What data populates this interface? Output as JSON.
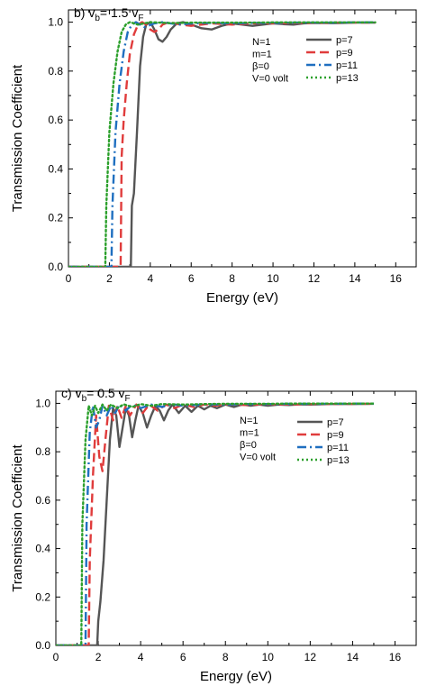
{
  "chart_data": [
    {
      "type": "line",
      "panel_label": "b) v",
      "panel_sub1": "b",
      "panel_mid": "= 1.5 v",
      "panel_sub2": "F",
      "xlabel": "Energy (eV)",
      "ylabel": "Transmission Coefficient",
      "xlim": [
        0,
        17
      ],
      "ylim": [
        0,
        1.05
      ],
      "xticks": [
        "0",
        "2",
        "4",
        "6",
        "8",
        "10",
        "12",
        "14",
        "16"
      ],
      "yticks": [
        "0.0",
        "0.2",
        "0.4",
        "0.6",
        "0.8",
        "1.0"
      ],
      "params": [
        "N=1",
        "m=1",
        "β=0",
        "V=0 volt"
      ],
      "legend_position": "top-right",
      "series": [
        {
          "name": "p=7",
          "color": "#555555",
          "dash": "solid",
          "points": [
            [
              0,
              0
            ],
            [
              3.05,
              0
            ],
            [
              3.1,
              0.25
            ],
            [
              3.2,
              0.3
            ],
            [
              3.35,
              0.55
            ],
            [
              3.5,
              0.82
            ],
            [
              3.65,
              0.94
            ],
            [
              3.8,
              0.99
            ],
            [
              4.0,
              1.0
            ],
            [
              4.2,
              0.97
            ],
            [
              4.4,
              0.93
            ],
            [
              4.6,
              0.92
            ],
            [
              4.8,
              0.94
            ],
            [
              5.0,
              0.97
            ],
            [
              5.3,
              0.995
            ],
            [
              5.6,
              1.0
            ],
            [
              6.0,
              0.99
            ],
            [
              6.5,
              0.975
            ],
            [
              7.0,
              0.97
            ],
            [
              7.5,
              0.985
            ],
            [
              8.0,
              0.995
            ],
            [
              8.5,
              0.99
            ],
            [
              9.0,
              0.985
            ],
            [
              9.5,
              0.99
            ],
            [
              10.0,
              0.995
            ],
            [
              10.5,
              0.992
            ],
            [
              11.0,
              0.99
            ],
            [
              11.5,
              0.995
            ],
            [
              12.0,
              0.997
            ],
            [
              13.0,
              0.996
            ],
            [
              14.0,
              0.998
            ],
            [
              15.0,
              0.998
            ]
          ]
        },
        {
          "name": "p=9",
          "color": "#e03c3c",
          "dash": "dashed",
          "points": [
            [
              0,
              0
            ],
            [
              2.55,
              0
            ],
            [
              2.6,
              0.45
            ],
            [
              2.7,
              0.6
            ],
            [
              2.85,
              0.75
            ],
            [
              3.0,
              0.87
            ],
            [
              3.2,
              0.95
            ],
            [
              3.4,
              0.99
            ],
            [
              3.6,
              1.0
            ],
            [
              3.8,
              0.99
            ],
            [
              4.0,
              0.97
            ],
            [
              4.2,
              0.96
            ],
            [
              4.4,
              0.97
            ],
            [
              4.6,
              0.99
            ],
            [
              4.9,
              1.0
            ],
            [
              5.5,
              0.99
            ],
            [
              6.0,
              0.985
            ],
            [
              6.5,
              0.99
            ],
            [
              7.0,
              0.995
            ],
            [
              8.0,
              0.99
            ],
            [
              9.0,
              0.995
            ],
            [
              10.0,
              0.995
            ],
            [
              11.0,
              0.996
            ],
            [
              12.0,
              0.997
            ],
            [
              13.0,
              0.998
            ],
            [
              14.0,
              0.998
            ],
            [
              15.0,
              0.998
            ]
          ]
        },
        {
          "name": "p=11",
          "color": "#1f6fc0",
          "dash": "dashdot",
          "points": [
            [
              0,
              0
            ],
            [
              2.1,
              0
            ],
            [
              2.15,
              0.25
            ],
            [
              2.3,
              0.55
            ],
            [
              2.5,
              0.75
            ],
            [
              2.7,
              0.88
            ],
            [
              2.9,
              0.96
            ],
            [
              3.1,
              0.99
            ],
            [
              3.3,
              1.0
            ],
            [
              3.5,
              0.99
            ],
            [
              3.7,
              0.98
            ],
            [
              3.9,
              0.985
            ],
            [
              4.2,
              0.995
            ],
            [
              4.6,
              1.0
            ],
            [
              5.0,
              0.995
            ],
            [
              5.5,
              0.99
            ],
            [
              6.0,
              0.995
            ],
            [
              7.0,
              0.997
            ],
            [
              8.0,
              0.995
            ],
            [
              9.0,
              0.997
            ],
            [
              10.0,
              0.997
            ],
            [
              11.0,
              0.998
            ],
            [
              12.0,
              0.998
            ],
            [
              13.0,
              0.998
            ],
            [
              14.0,
              0.999
            ],
            [
              15.0,
              0.999
            ]
          ]
        },
        {
          "name": "p=13",
          "color": "#2ca02c",
          "dash": "dotted",
          "points": [
            [
              0,
              0
            ],
            [
              1.8,
              0
            ],
            [
              1.85,
              0.25
            ],
            [
              2.0,
              0.55
            ],
            [
              2.2,
              0.75
            ],
            [
              2.4,
              0.88
            ],
            [
              2.6,
              0.96
            ],
            [
              2.8,
              0.99
            ],
            [
              3.0,
              1.0
            ],
            [
              3.2,
              0.995
            ],
            [
              3.4,
              0.99
            ],
            [
              3.7,
              0.995
            ],
            [
              4.0,
              1.0
            ],
            [
              4.5,
              0.998
            ],
            [
              5.0,
              0.996
            ],
            [
              6.0,
              0.998
            ],
            [
              7.0,
              0.998
            ],
            [
              8.0,
              0.998
            ],
            [
              9.0,
              0.998
            ],
            [
              10.0,
              0.999
            ],
            [
              11.0,
              0.999
            ],
            [
              12.0,
              0.999
            ],
            [
              13.0,
              0.999
            ],
            [
              14.0,
              0.999
            ],
            [
              15.0,
              0.999
            ]
          ]
        }
      ]
    },
    {
      "type": "line",
      "panel_label": "c) v",
      "panel_sub1": "b",
      "panel_mid": "= 0.5 v",
      "panel_sub2": "F",
      "xlabel": "Energy (eV)",
      "ylabel": "Transmission Coefficient",
      "xlim": [
        0,
        17
      ],
      "ylim": [
        0,
        1.05
      ],
      "xticks": [
        "0",
        "2",
        "4",
        "6",
        "8",
        "10",
        "12",
        "14",
        "16"
      ],
      "yticks": [
        "0.0",
        "0.2",
        "0.4",
        "0.6",
        "0.8",
        "1.0"
      ],
      "params": [
        "N=1",
        "m=1",
        "β=0",
        "V=0 volt"
      ],
      "legend_position": "top-right",
      "series": [
        {
          "name": "p=7",
          "color": "#555555",
          "dash": "solid",
          "points": [
            [
              0,
              0
            ],
            [
              1.95,
              0
            ],
            [
              2.0,
              0.1
            ],
            [
              2.1,
              0.18
            ],
            [
              2.25,
              0.35
            ],
            [
              2.4,
              0.6
            ],
            [
              2.55,
              0.85
            ],
            [
              2.7,
              0.98
            ],
            [
              2.85,
              0.95
            ],
            [
              3.0,
              0.82
            ],
            [
              3.15,
              0.9
            ],
            [
              3.3,
              0.98
            ],
            [
              3.45,
              0.95
            ],
            [
              3.6,
              0.86
            ],
            [
              3.75,
              0.93
            ],
            [
              3.9,
              0.99
            ],
            [
              4.1,
              0.96
            ],
            [
              4.3,
              0.9
            ],
            [
              4.5,
              0.95
            ],
            [
              4.7,
              0.99
            ],
            [
              4.9,
              0.97
            ],
            [
              5.1,
              0.93
            ],
            [
              5.3,
              0.97
            ],
            [
              5.5,
              0.995
            ],
            [
              5.8,
              0.96
            ],
            [
              6.1,
              0.99
            ],
            [
              6.4,
              0.965
            ],
            [
              6.7,
              0.99
            ],
            [
              7.0,
              0.975
            ],
            [
              7.3,
              0.99
            ],
            [
              7.6,
              0.98
            ],
            [
              8.0,
              0.995
            ],
            [
              8.4,
              0.985
            ],
            [
              8.8,
              0.995
            ],
            [
              9.2,
              0.99
            ],
            [
              9.6,
              0.995
            ],
            [
              10.0,
              0.99
            ],
            [
              10.5,
              0.995
            ],
            [
              11.0,
              0.993
            ],
            [
              11.5,
              0.996
            ],
            [
              12.0,
              0.995
            ],
            [
              13.0,
              0.997
            ],
            [
              14.0,
              0.997
            ],
            [
              15.0,
              0.998
            ]
          ]
        },
        {
          "name": "p=9",
          "color": "#e03c3c",
          "dash": "dashed",
          "points": [
            [
              0,
              0
            ],
            [
              1.55,
              0
            ],
            [
              1.6,
              0.35
            ],
            [
              1.75,
              0.7
            ],
            [
              1.9,
              0.95
            ],
            [
              2.05,
              0.78
            ],
            [
              2.2,
              0.72
            ],
            [
              2.35,
              0.86
            ],
            [
              2.5,
              0.99
            ],
            [
              2.7,
              0.93
            ],
            [
              2.9,
              0.99
            ],
            [
              3.1,
              0.94
            ],
            [
              3.3,
              0.99
            ],
            [
              3.5,
              0.95
            ],
            [
              3.8,
              0.995
            ],
            [
              4.1,
              0.96
            ],
            [
              4.4,
              0.995
            ],
            [
              4.8,
              0.97
            ],
            [
              5.2,
              0.995
            ],
            [
              5.6,
              0.98
            ],
            [
              6.0,
              0.995
            ],
            [
              6.5,
              0.985
            ],
            [
              7.0,
              0.995
            ],
            [
              7.5,
              0.99
            ],
            [
              8.0,
              0.996
            ],
            [
              9.0,
              0.993
            ],
            [
              10.0,
              0.996
            ],
            [
              11.0,
              0.995
            ],
            [
              12.0,
              0.997
            ],
            [
              13.0,
              0.997
            ],
            [
              14.0,
              0.998
            ],
            [
              15.0,
              0.998
            ]
          ]
        },
        {
          "name": "p=11",
          "color": "#1f6fc0",
          "dash": "dashdot",
          "points": [
            [
              0,
              0
            ],
            [
              1.4,
              0
            ],
            [
              1.45,
              0.5
            ],
            [
              1.6,
              0.88
            ],
            [
              1.75,
              0.99
            ],
            [
              1.9,
              0.9
            ],
            [
              2.05,
              0.93
            ],
            [
              2.2,
              0.99
            ],
            [
              2.4,
              0.95
            ],
            [
              2.6,
              0.99
            ],
            [
              2.8,
              0.96
            ],
            [
              3.0,
              0.995
            ],
            [
              3.3,
              0.97
            ],
            [
              3.6,
              0.995
            ],
            [
              4.0,
              0.98
            ],
            [
              4.5,
              0.995
            ],
            [
              5.0,
              0.985
            ],
            [
              5.5,
              0.996
            ],
            [
              6.0,
              0.99
            ],
            [
              7.0,
              0.996
            ],
            [
              8.0,
              0.995
            ],
            [
              9.0,
              0.997
            ],
            [
              10.0,
              0.997
            ],
            [
              11.0,
              0.998
            ],
            [
              12.0,
              0.998
            ],
            [
              13.0,
              0.998
            ],
            [
              14.0,
              0.999
            ],
            [
              15.0,
              0.999
            ]
          ]
        },
        {
          "name": "p=13",
          "color": "#2ca02c",
          "dash": "dotted",
          "points": [
            [
              0,
              0
            ],
            [
              1.2,
              0
            ],
            [
              1.25,
              0.5
            ],
            [
              1.4,
              0.85
            ],
            [
              1.55,
              0.99
            ],
            [
              1.7,
              0.95
            ],
            [
              1.85,
              0.99
            ],
            [
              2.0,
              0.96
            ],
            [
              2.2,
              0.995
            ],
            [
              2.4,
              0.97
            ],
            [
              2.6,
              0.995
            ],
            [
              2.9,
              0.98
            ],
            [
              3.2,
              0.996
            ],
            [
              3.6,
              0.985
            ],
            [
              4.0,
              0.997
            ],
            [
              4.5,
              0.99
            ],
            [
              5.0,
              0.997
            ],
            [
              6.0,
              0.995
            ],
            [
              7.0,
              0.997
            ],
            [
              8.0,
              0.998
            ],
            [
              9.0,
              0.998
            ],
            [
              10.0,
              0.998
            ],
            [
              11.0,
              0.999
            ],
            [
              12.0,
              0.999
            ],
            [
              13.0,
              0.999
            ],
            [
              14.0,
              0.999
            ],
            [
              15.0,
              0.999
            ]
          ]
        }
      ]
    }
  ]
}
